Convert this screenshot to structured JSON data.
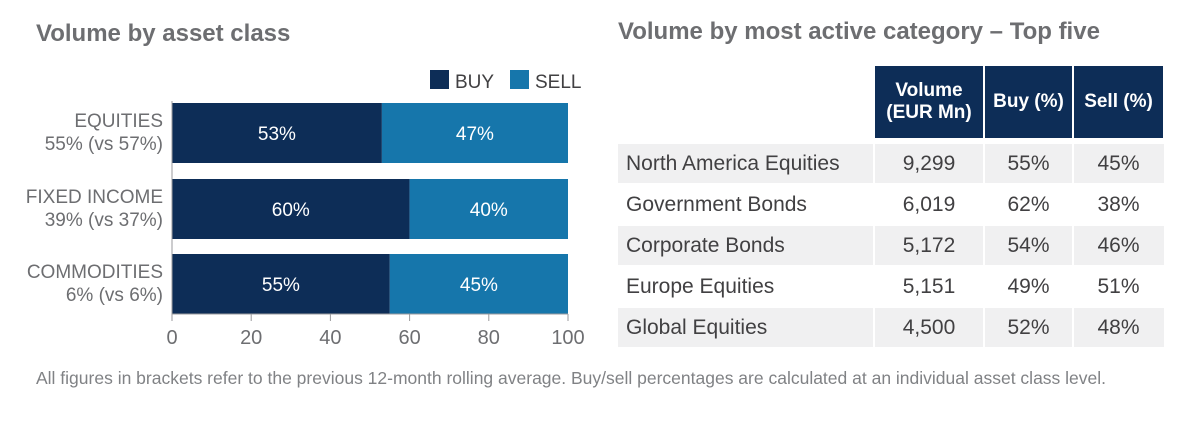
{
  "chart_data": [
    {
      "type": "bar",
      "orientation": "horizontal",
      "stacked": true,
      "title": "Volume by asset class",
      "categories": [
        [
          "EQUITIES",
          "55% (vs 57%)"
        ],
        [
          "FIXED INCOME",
          "39% (vs 37%)"
        ],
        [
          "COMMODITIES",
          "6% (vs 6%)"
        ]
      ],
      "series": [
        {
          "name": "BUY",
          "color": "#0d2d57",
          "values": [
            53,
            60,
            55
          ],
          "labels": [
            "53%",
            "60%",
            "55%"
          ]
        },
        {
          "name": "SELL",
          "color": "#1676ab",
          "values": [
            47,
            40,
            45
          ],
          "labels": [
            "47%",
            "40%",
            "45%"
          ]
        }
      ],
      "xlim": [
        0,
        100
      ],
      "xticks": [
        0,
        20,
        40,
        60,
        80,
        100
      ],
      "legend": "top-right",
      "grid": false
    },
    {
      "type": "table",
      "title": "Volume by most active category – Top five",
      "columns": [
        [
          "Volume",
          "(EUR Mn)"
        ],
        [
          "Buy (%)"
        ],
        [
          "Sell (%)"
        ]
      ],
      "rows": [
        [
          "North America Equities",
          "9,299",
          "55%",
          "45%"
        ],
        [
          "Government Bonds",
          "6,019",
          "62%",
          "38%"
        ],
        [
          "Corporate Bonds",
          "5,172",
          "54%",
          "46%"
        ],
        [
          "Europe Equities",
          "5,151",
          "49%",
          "51%"
        ],
        [
          "Global Equities",
          "4,500",
          "52%",
          "48%"
        ]
      ],
      "header_color": "#0d2d57"
    }
  ],
  "footnote": "All figures in brackets refer to the previous 12-month rolling average. Buy/sell percentages are calculated at an individual asset class level."
}
